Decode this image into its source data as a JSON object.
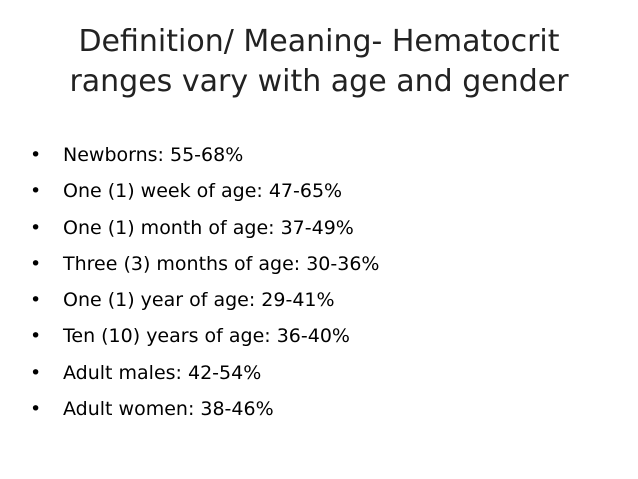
{
  "title": [
    "Definition/ Meaning- Hematocrit",
    "ranges vary with age and gender"
  ],
  "bullets": [
    "Newborns: 55-68%",
    "One (1) week of age: 47-65%",
    "One (1) month of age: 37-49%",
    "Three (3) months of age: 30-36%",
    "One (1) year of age: 29-41%",
    "Ten (10) years of age: 36-40%",
    "Adult males: 42-54%",
    "Adult women: 38-46%"
  ]
}
